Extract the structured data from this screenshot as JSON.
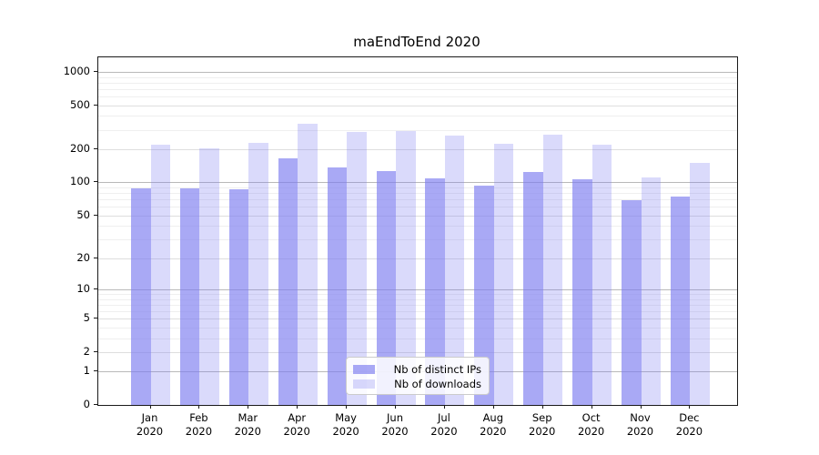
{
  "chart_data": {
    "type": "bar",
    "title": "maEndToEnd 2020",
    "yscale": "log1p",
    "ylim": [
      0,
      1350
    ],
    "yticks": [
      0,
      1,
      2,
      5,
      10,
      20,
      50,
      100,
      200,
      500,
      1000
    ],
    "grid": {
      "major": [
        1,
        10,
        100,
        1000
      ],
      "mid": [
        2,
        5,
        20,
        50,
        200,
        500
      ],
      "minor": [
        3,
        4,
        6,
        7,
        8,
        9,
        30,
        40,
        60,
        70,
        80,
        90,
        300,
        400,
        600,
        700,
        800,
        900
      ]
    },
    "categories": [
      {
        "label": "Jan",
        "sub": "2020"
      },
      {
        "label": "Feb",
        "sub": "2020"
      },
      {
        "label": "Mar",
        "sub": "2020"
      },
      {
        "label": "Apr",
        "sub": "2020"
      },
      {
        "label": "May",
        "sub": "2020"
      },
      {
        "label": "Jun",
        "sub": "2020"
      },
      {
        "label": "Jul",
        "sub": "2020"
      },
      {
        "label": "Aug",
        "sub": "2020"
      },
      {
        "label": "Sep",
        "sub": "2020"
      },
      {
        "label": "Oct",
        "sub": "2020"
      },
      {
        "label": "Nov",
        "sub": "2020"
      },
      {
        "label": "Dec",
        "sub": "2020"
      }
    ],
    "series": [
      {
        "name": "Nb of distinct IPs",
        "color": "rgba(123,123,240,0.65)",
        "values": [
          88,
          88,
          86,
          165,
          138,
          128,
          108,
          93,
          125,
          107,
          69,
          75
        ]
      },
      {
        "name": "Nb of downloads",
        "color": "rgba(123,123,240,0.28)",
        "values": [
          220,
          205,
          230,
          342,
          285,
          293,
          268,
          223,
          272,
          218,
          112,
          150
        ]
      }
    ],
    "legend_position": "lower center"
  }
}
